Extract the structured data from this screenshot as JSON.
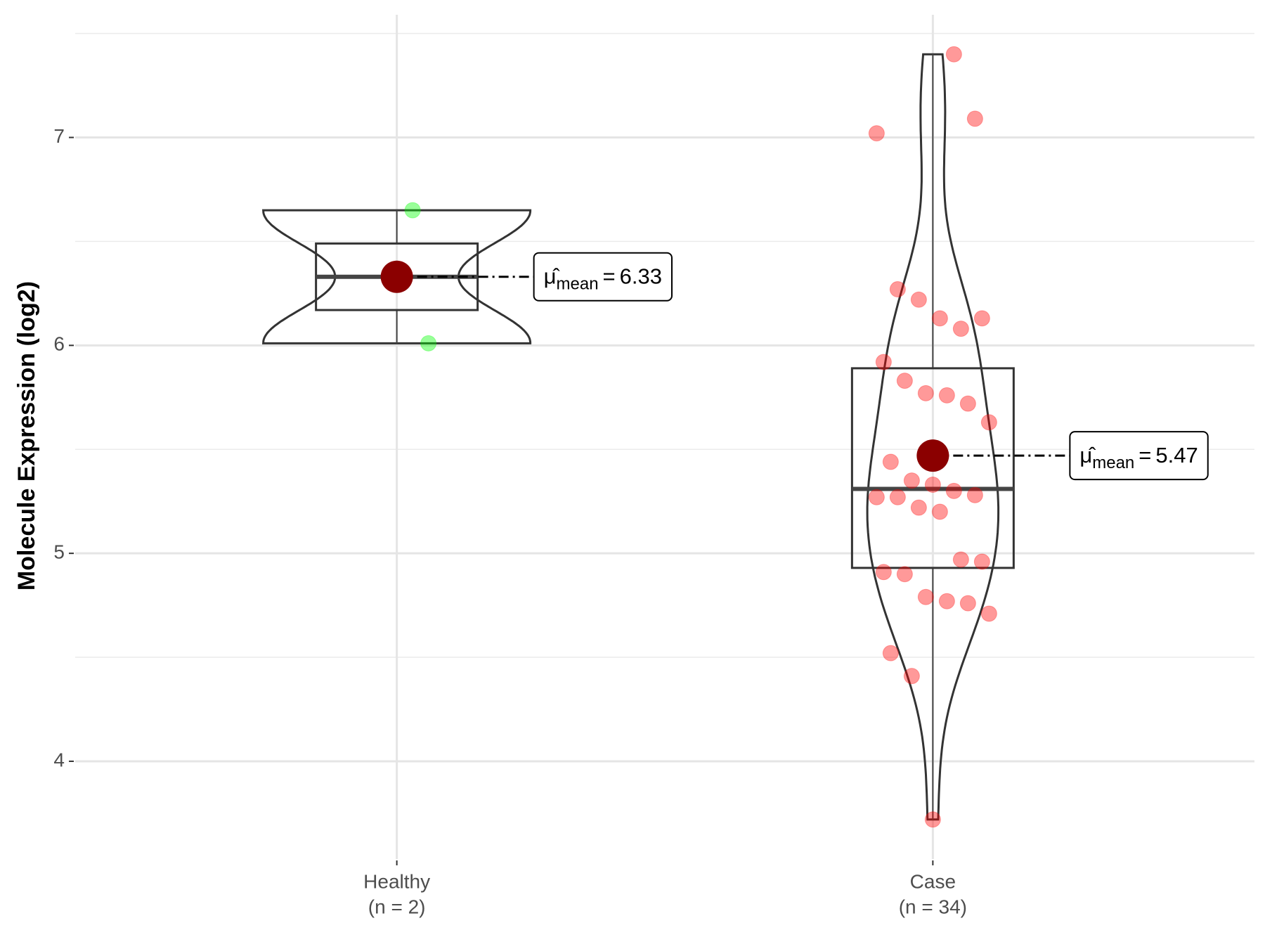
{
  "chart_data": {
    "type": "violin",
    "y_label": "Molecule Expression (log2)",
    "categories": [
      "Healthy",
      "Case"
    ],
    "n_labels": [
      "(n = 2)",
      "(n = 34)"
    ],
    "groups": [
      {
        "color": "#00ff00",
        "points": [
          6.65,
          6.01
        ],
        "box": {
          "min": 6.01,
          "q1": 6.17,
          "median": 6.33,
          "q3": 6.49,
          "max": 6.65
        },
        "mean": 6.33
      },
      {
        "color": "#ff0000",
        "points": [
          7.4,
          7.09,
          7.02,
          6.27,
          6.22,
          6.13,
          6.08,
          6.13,
          5.92,
          5.83,
          5.77,
          5.76,
          5.72,
          5.63,
          5.44,
          5.35,
          5.33,
          5.3,
          5.28,
          5.27,
          5.27,
          5.22,
          5.2,
          4.97,
          4.96,
          4.91,
          4.9,
          4.79,
          4.77,
          4.76,
          4.71,
          4.52,
          4.41,
          3.72
        ],
        "box": {
          "min": 3.72,
          "q1": 4.93,
          "median": 5.31,
          "q3": 5.89,
          "max": 7.4
        },
        "mean": 5.47
      }
    ],
    "mean_symbol": "μ̂",
    "mean_subscript": "mean",
    "mean_operator": "=",
    "ylim": [
      3.53,
      7.59
    ],
    "yticks": [
      4,
      5,
      6,
      7
    ],
    "minor_gridlines": [
      4.5,
      5.5,
      6.5,
      7.5
    ],
    "grid": true
  }
}
